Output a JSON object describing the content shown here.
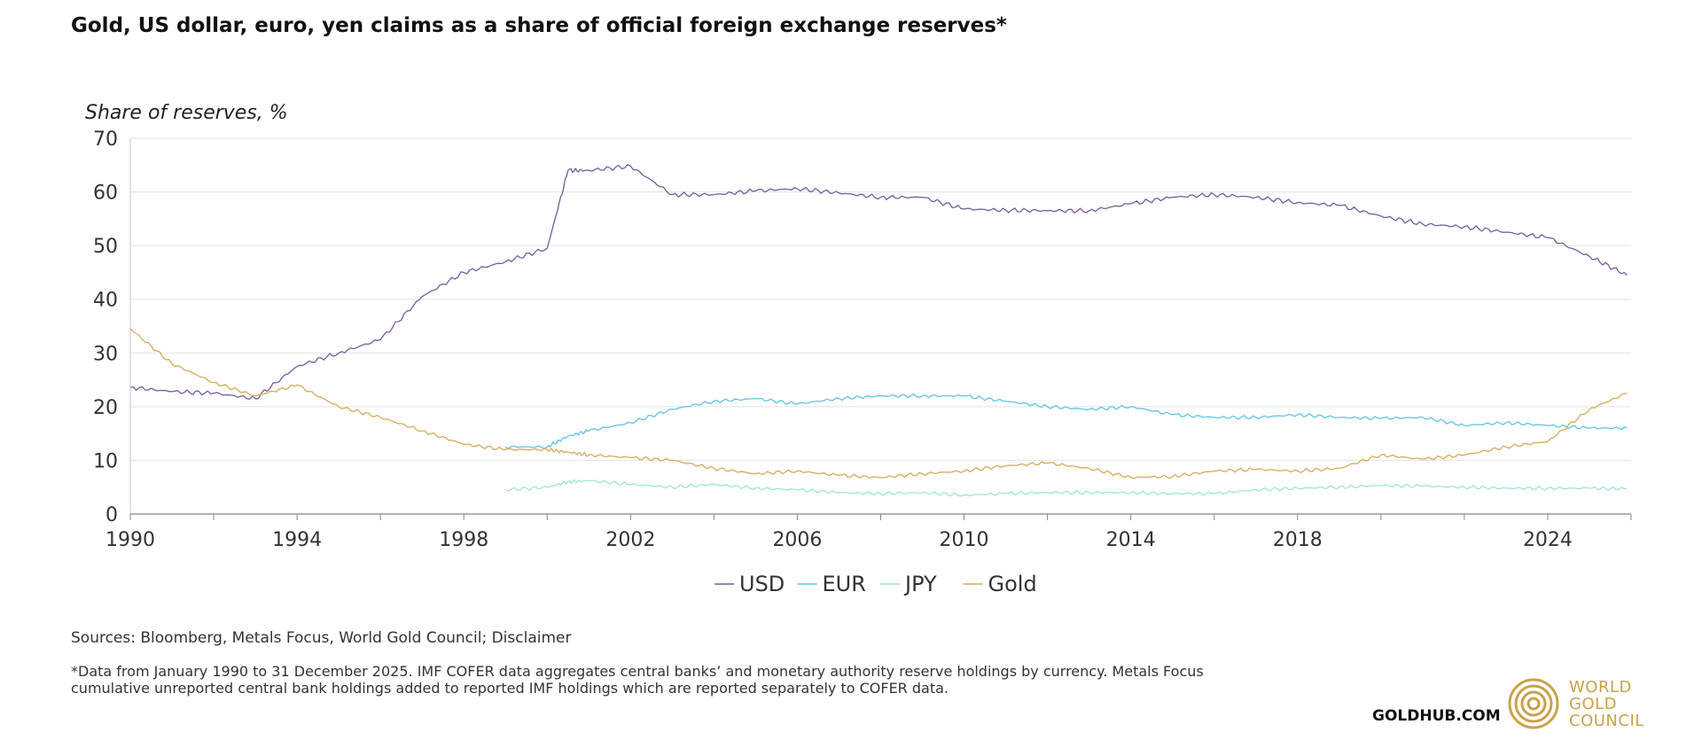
{
  "title": "Gold, US dollar, euro, yen claims as a share of official foreign exchange reserves*",
  "chart_data": {
    "type": "line",
    "title": "Gold, US dollar, euro, yen claims as a share of official foreign exchange reserves*",
    "ylabel": "Share of reserves, %",
    "xlabel": "",
    "ylim": [
      0,
      70
    ],
    "xlim": [
      1990,
      2026
    ],
    "y_ticks": [
      "0",
      "10",
      "20",
      "30",
      "40",
      "50",
      "60",
      "70"
    ],
    "x_ticks": [
      "1990",
      "1994",
      "1998",
      "2002",
      "2006",
      "2010",
      "2014",
      "2018",
      "2024"
    ],
    "grid": true,
    "legend_position": "bottom-center",
    "x": [
      1990,
      1991,
      1992,
      1993,
      1994,
      1995,
      1996,
      1997,
      1998,
      1999,
      2000,
      2000.5,
      2001,
      2002,
      2003,
      2004,
      2005,
      2006,
      2007,
      2008,
      2009,
      2010,
      2011,
      2012,
      2013,
      2014,
      2015,
      2016,
      2017,
      2018,
      2019,
      2020,
      2021,
      2022,
      2023,
      2024,
      2025,
      2025.9
    ],
    "series": [
      {
        "name": "USD",
        "color": "#7a5a9e",
        "values": [
          23.6,
          22.8,
          22.5,
          21.5,
          27.5,
          30.0,
          32.5,
          40.5,
          45.0,
          47.0,
          49.5,
          64.0,
          64.0,
          64.8,
          59.5,
          59.5,
          60.2,
          60.6,
          59.8,
          59.0,
          59.0,
          56.8,
          56.6,
          56.5,
          56.5,
          57.8,
          59.0,
          59.5,
          59.0,
          58.0,
          57.5,
          55.5,
          54.0,
          53.5,
          52.5,
          51.5,
          48.0,
          44.5
        ]
      },
      {
        "name": "EUR",
        "color": "#5fc4ea",
        "values": [
          null,
          null,
          null,
          null,
          null,
          null,
          null,
          null,
          null,
          12.5,
          12.5,
          14.5,
          15.5,
          17.0,
          19.5,
          21.0,
          21.5,
          20.5,
          21.5,
          22.0,
          22.0,
          22.0,
          21.0,
          20.0,
          19.5,
          20.0,
          18.5,
          18.0,
          18.0,
          18.5,
          18.0,
          17.8,
          18.0,
          16.5,
          17.0,
          16.5,
          16.0,
          16.0
        ]
      },
      {
        "name": "JPY",
        "color": "#9ee4dc",
        "values": [
          null,
          null,
          null,
          null,
          null,
          null,
          null,
          null,
          null,
          4.5,
          5.0,
          6.0,
          6.2,
          5.5,
          5.0,
          5.5,
          4.8,
          4.5,
          4.0,
          3.8,
          4.0,
          3.5,
          3.8,
          4.0,
          4.0,
          4.0,
          3.8,
          3.8,
          4.5,
          4.8,
          5.0,
          5.3,
          5.2,
          5.0,
          4.8,
          4.8,
          4.8,
          4.7
        ]
      },
      {
        "name": "Gold",
        "color": "#d9a957",
        "values": [
          34.5,
          28.0,
          24.5,
          22.0,
          24.0,
          20.0,
          18.0,
          15.5,
          13.0,
          12.0,
          12.0,
          11.5,
          11.0,
          10.5,
          10.0,
          8.5,
          7.5,
          8.0,
          7.2,
          6.8,
          7.5,
          8.0,
          9.0,
          9.5,
          8.5,
          6.8,
          7.0,
          8.0,
          8.3,
          8.0,
          8.5,
          11.0,
          10.2,
          11.0,
          12.5,
          13.5,
          19.5,
          22.5
        ]
      }
    ]
  },
  "footer": {
    "sources": "Sources: Bloomberg, Metals Focus, World Gold Council; Disclaimer",
    "note": "*Data from January 1990 to 31 December 2025. IMF COFER data aggregates central banks’ and monetary authority reserve holdings by currency. Metals Focus cumulative unreported central bank holdings added to reported IMF holdings which are reported separately to COFER data."
  },
  "branding": {
    "site": "GOLDHUB.COM",
    "logo_lines": [
      "WORLD",
      "GOLD",
      "COUNCIL"
    ],
    "logo_color": "#c9a24b"
  }
}
